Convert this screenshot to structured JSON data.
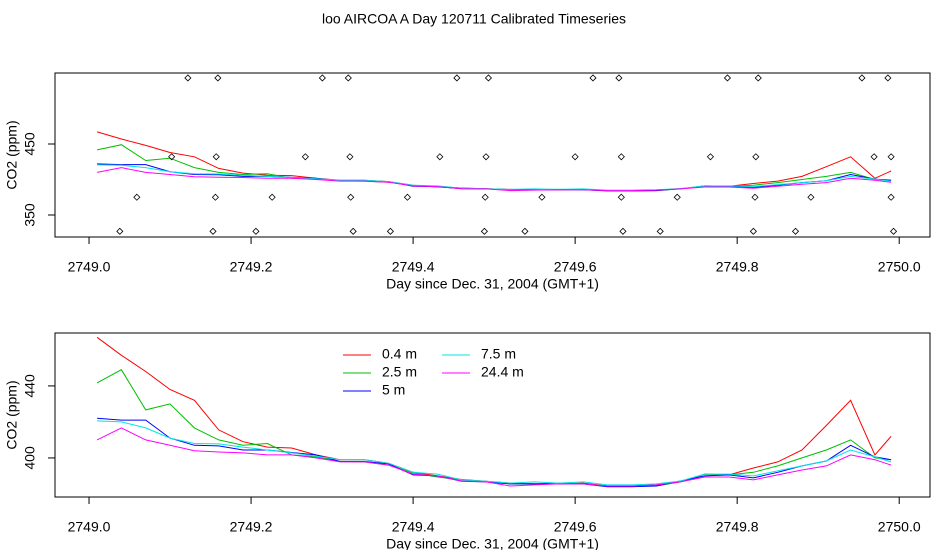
{
  "title": "loo AIRCOA A  Day 120711  Calibrated Timeseries",
  "chart_data": [
    {
      "type": "line",
      "xlabel": "Day since Dec. 31, 2004 (GMT+1)",
      "ylabel": "CO2 (ppm)",
      "xlim": [
        2748.958,
        2750.038
      ],
      "ylim": [
        319,
        550
      ],
      "xticks": [
        {
          "value": 2749,
          "label": "2749.0"
        },
        2749.2,
        2749.4,
        2749.6,
        2749.8,
        {
          "value": 2750,
          "label": "2750.0"
        }
      ],
      "yticks": [
        350,
        450
      ],
      "x": [
        2749.01,
        2749.04,
        2749.07,
        2749.1,
        2749.13,
        2749.16,
        2749.19,
        2749.22,
        2749.25,
        2749.28,
        2749.31,
        2749.34,
        2749.37,
        2749.4,
        2749.43,
        2749.46,
        2749.49,
        2749.52,
        2749.55,
        2749.58,
        2749.61,
        2749.64,
        2749.67,
        2749.7,
        2749.73,
        2749.76,
        2749.79,
        2749.82,
        2749.85,
        2749.88,
        2749.91,
        2749.94,
        2749.97,
        2749.99
      ],
      "series": [
        {
          "color": "#ff0000",
          "values": [
            467,
            457,
            448,
            438,
            432,
            415.6,
            409,
            406,
            405.5,
            401.7,
            399,
            399,
            397,
            392,
            390,
            388,
            387,
            386,
            385.6,
            385.6,
            386,
            384.4,
            384.4,
            385,
            386.7,
            391,
            390.6,
            394.4,
            397.8,
            404.4,
            418,
            432,
            401.7,
            412
          ]
        },
        {
          "color": "#00c000",
          "values": [
            441.7,
            449,
            426.7,
            430,
            416.7,
            410,
            407,
            408,
            401.7,
            400.6,
            398,
            397.8,
            396,
            391.7,
            389.4,
            387.8,
            386.7,
            385.6,
            385.6,
            386,
            385.6,
            384.4,
            384.4,
            384.4,
            386.7,
            391,
            390.6,
            392,
            395.6,
            400,
            404.4,
            410,
            400,
            399
          ]
        },
        {
          "color": "#0000ff",
          "values": [
            422,
            421,
            421,
            411,
            407,
            406.7,
            404.4,
            404.4,
            403,
            401.7,
            398,
            398,
            396.7,
            390.6,
            390,
            387,
            386.7,
            385.6,
            385.6,
            385.6,
            385.6,
            384,
            384,
            384.4,
            387.2,
            390,
            390.6,
            388.9,
            392,
            395.6,
            398.3,
            407,
            400.6,
            399
          ]
        },
        {
          "color": "#00e5e5",
          "values": [
            420.6,
            420,
            416.7,
            411,
            408,
            407.8,
            406,
            404.4,
            402.8,
            401,
            399,
            399,
            397,
            392,
            391,
            387.8,
            387,
            386,
            386.7,
            386,
            386.7,
            385,
            385,
            385.6,
            387.2,
            391,
            391,
            390,
            392.8,
            395.6,
            398.3,
            404.4,
            400.6,
            397.8
          ]
        },
        {
          "color": "#ff00ff",
          "values": [
            410,
            416.7,
            410,
            407,
            404,
            403.3,
            402.8,
            401.7,
            401.7,
            400,
            397.8,
            397.8,
            396,
            391,
            390,
            387.2,
            386.7,
            384.4,
            385,
            385.6,
            385.6,
            384.4,
            384.4,
            385,
            386.7,
            389.4,
            389.4,
            387.8,
            390.6,
            393.3,
            395.6,
            401.7,
            399,
            396
          ]
        }
      ],
      "markers": {
        "x": [
          2749.122,
          2749.159,
          2749.288,
          2749.32,
          2749.454,
          2749.493,
          2749.622,
          2749.654,
          2749.788,
          2749.826,
          2749.954,
          2749.986,
          2749.102,
          2749.157,
          2749.267,
          2749.322,
          2749.433,
          2749.49,
          2749.6,
          2749.657,
          2749.767,
          2749.823,
          2749.969,
          2749.99,
          2749.059,
          2749.156,
          2749.226,
          2749.323,
          2749.393,
          2749.489,
          2749.559,
          2749.657,
          2749.726,
          2749.822,
          2749.891,
          2749.99,
          2749.038,
          2749.153,
          2749.206,
          2749.326,
          2749.372,
          2749.488,
          2749.538,
          2749.659,
          2749.705,
          2749.82,
          2749.872,
          2749.993
        ],
        "y": [
          543,
          543,
          543,
          543,
          543,
          543,
          543,
          543,
          543,
          543,
          543,
          543,
          432,
          432,
          432,
          432,
          432,
          432,
          432,
          432,
          432,
          432,
          432,
          432,
          375,
          375,
          375,
          375,
          375,
          375,
          375,
          375,
          375,
          375,
          375,
          375,
          327,
          327,
          327,
          327,
          327,
          327,
          327,
          327,
          327,
          327,
          327,
          327
        ]
      }
    },
    {
      "type": "line",
      "xlabel": "Day since Dec. 31, 2004 (GMT+1)",
      "ylabel": "CO2 (ppm)",
      "legend": "top",
      "xlim": [
        2748.958,
        2750.038
      ],
      "ylim": [
        378.3,
        469.4
      ],
      "xticks": [
        {
          "value": 2749,
          "label": "2749.0"
        },
        2749.2,
        2749.4,
        2749.6,
        2749.8,
        {
          "value": 2750,
          "label": "2750.0"
        }
      ],
      "yticks": [
        400,
        440
      ],
      "x": [
        2749.01,
        2749.04,
        2749.07,
        2749.1,
        2749.13,
        2749.16,
        2749.19,
        2749.22,
        2749.25,
        2749.28,
        2749.31,
        2749.34,
        2749.37,
        2749.4,
        2749.43,
        2749.46,
        2749.49,
        2749.52,
        2749.55,
        2749.58,
        2749.61,
        2749.64,
        2749.67,
        2749.7,
        2749.73,
        2749.76,
        2749.79,
        2749.82,
        2749.85,
        2749.88,
        2749.91,
        2749.94,
        2749.97,
        2749.99
      ],
      "series": [
        {
          "name": "0.4 m",
          "color": "#ff0000",
          "values": [
            467,
            457,
            448,
            438,
            432,
            415.6,
            409,
            406,
            405.5,
            401.7,
            399,
            399,
            397,
            392,
            390,
            388,
            387,
            386,
            385.6,
            385.6,
            386,
            384.4,
            384.4,
            385,
            386.7,
            391,
            390.6,
            394.4,
            397.8,
            404.4,
            418,
            432,
            401.7,
            412
          ]
        },
        {
          "name": "2.5 m",
          "color": "#00c000",
          "values": [
            441.7,
            449,
            426.7,
            430,
            416.7,
            410,
            407,
            408,
            401.7,
            400.6,
            398,
            397.8,
            396,
            391.7,
            389.4,
            387.8,
            386.7,
            385.6,
            385.6,
            386,
            385.6,
            384.4,
            384.4,
            384.4,
            386.7,
            391,
            390.6,
            392,
            395.6,
            400,
            404.4,
            410,
            400,
            399
          ]
        },
        {
          "name": "5 m",
          "color": "#0000ff",
          "values": [
            422,
            421,
            421,
            411,
            407,
            406.7,
            404.4,
            404.4,
            403,
            401.7,
            398,
            398,
            396.7,
            390.6,
            390,
            387,
            386.7,
            385.6,
            385.6,
            385.6,
            385.6,
            384,
            384,
            384.4,
            387.2,
            390,
            390.6,
            388.9,
            392,
            395.6,
            398.3,
            407,
            400.6,
            399
          ]
        },
        {
          "name": "7.5 m",
          "color": "#00e5e5",
          "values": [
            420.6,
            420,
            416.7,
            411,
            408,
            407.8,
            406,
            404.4,
            402.8,
            401,
            399,
            399,
            397,
            392,
            391,
            387.8,
            387,
            386,
            386.7,
            386,
            386.7,
            385,
            385,
            385.6,
            387.2,
            391,
            391,
            390,
            392.8,
            395.6,
            398.3,
            404.4,
            400.6,
            397.8
          ]
        },
        {
          "name": "24.4 m",
          "color": "#ff00ff",
          "values": [
            410,
            416.7,
            410,
            407,
            404,
            403.3,
            402.8,
            401.7,
            401.7,
            400,
            397.8,
            397.8,
            396,
            391,
            390,
            387.2,
            386.7,
            384.4,
            385,
            385.6,
            385.6,
            384.4,
            384.4,
            385,
            386.7,
            389.4,
            389.4,
            387.8,
            390.6,
            393.3,
            395.6,
            401.7,
            399,
            396
          ]
        }
      ]
    }
  ]
}
